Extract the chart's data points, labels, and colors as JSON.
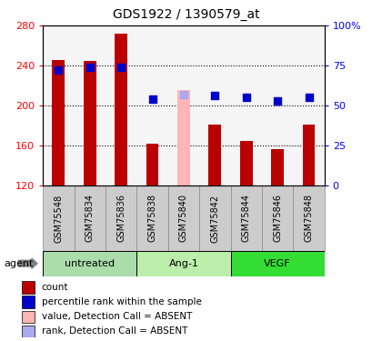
{
  "title": "GDS1922 / 1390579_at",
  "samples": [
    "GSM75548",
    "GSM75834",
    "GSM75836",
    "GSM75838",
    "GSM75840",
    "GSM75842",
    "GSM75844",
    "GSM75846",
    "GSM75848"
  ],
  "bar_values": [
    246,
    245,
    272,
    162,
    null,
    181,
    165,
    157,
    181
  ],
  "bar_absent_values": [
    null,
    null,
    null,
    null,
    216,
    null,
    null,
    null,
    null
  ],
  "bar_color": "#bb0000",
  "bar_absent_color": "#ffb6b6",
  "percentile_values": [
    236,
    238,
    238,
    207,
    211,
    210,
    208,
    205,
    208
  ],
  "percentile_absent": [
    false,
    false,
    false,
    false,
    true,
    false,
    false,
    false,
    false
  ],
  "percentile_color": "#0000cc",
  "percentile_absent_color": "#aaaaee",
  "ymin": 120,
  "ymax": 280,
  "yticks": [
    120,
    160,
    200,
    240,
    280
  ],
  "y2min": 0,
  "y2max": 100,
  "y2ticks": [
    0,
    25,
    50,
    75,
    100
  ],
  "y2labels": [
    "0",
    "25",
    "50",
    "75",
    "100%"
  ],
  "groups": [
    {
      "label": "untreated",
      "start": 0,
      "end": 2,
      "color": "#aaddaa"
    },
    {
      "label": "Ang-1",
      "start": 3,
      "end": 5,
      "color": "#bbeeaa"
    },
    {
      "label": "VEGF",
      "start": 6,
      "end": 8,
      "color": "#33dd33"
    }
  ],
  "group_label": "agent",
  "bar_width": 0.4,
  "percentile_marker_size": 30,
  "tick_box_color": "#cccccc",
  "tick_box_edge": "#888888",
  "plot_bg": "#f5f5f5"
}
